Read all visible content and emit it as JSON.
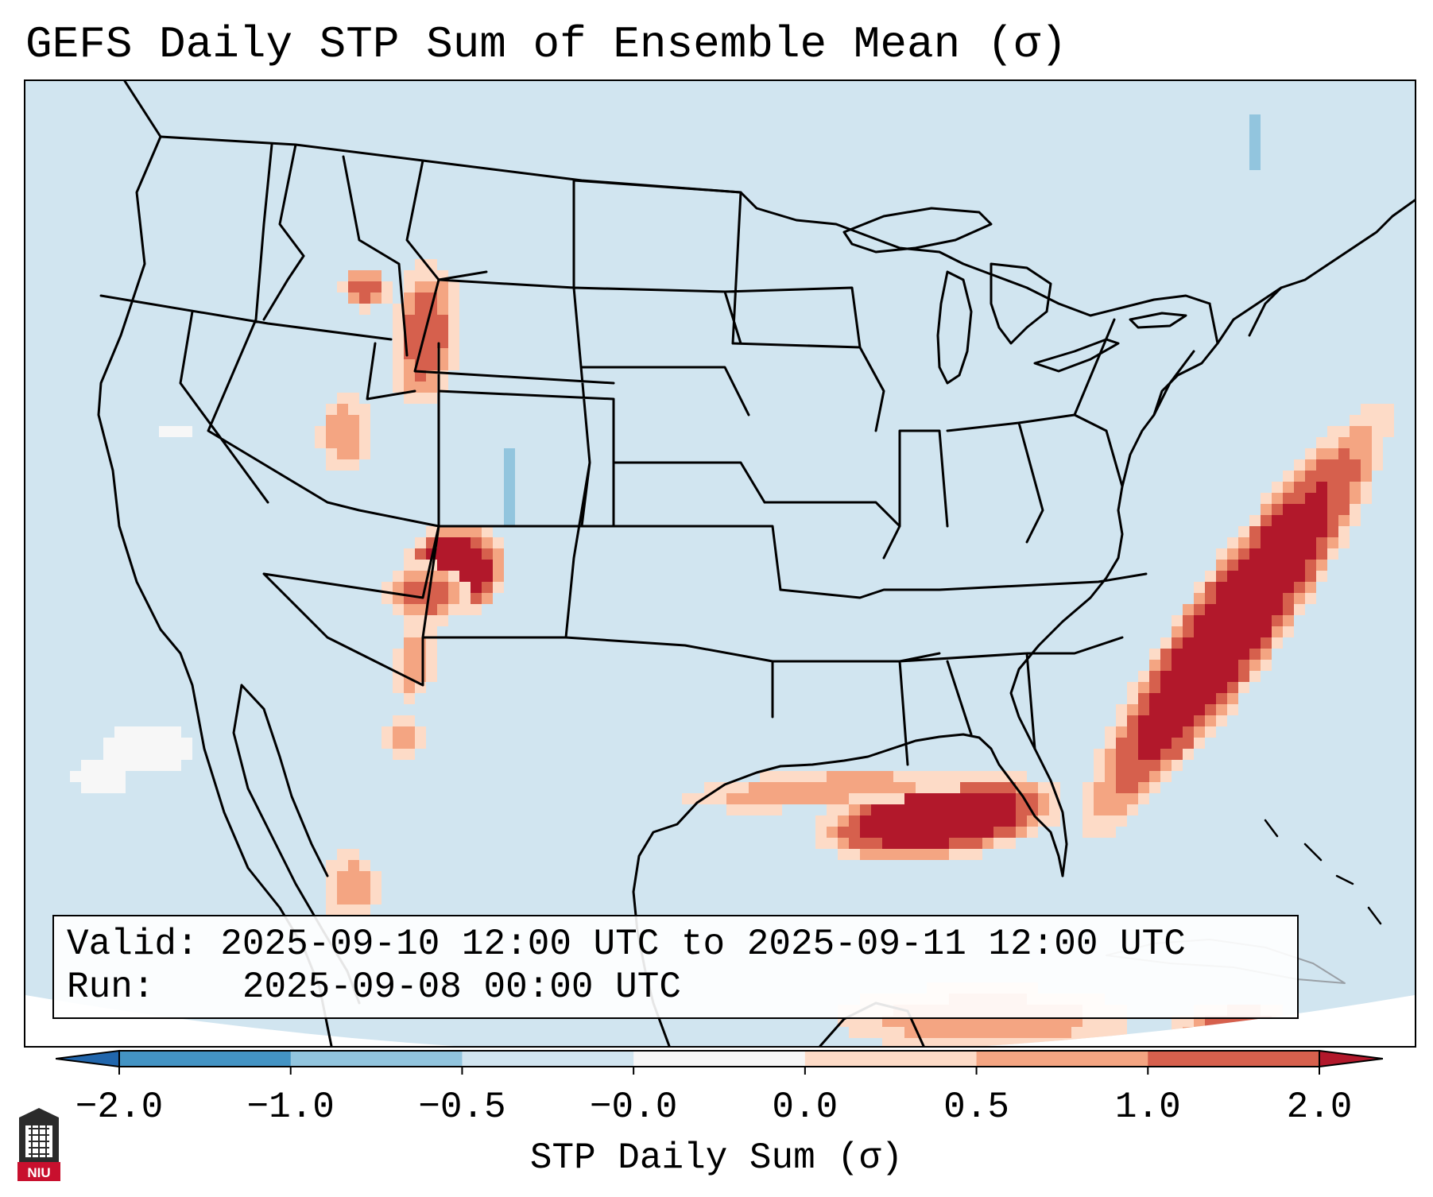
{
  "title": "GEFS Daily STP Sum of Ensemble Mean (σ)",
  "info_box": {
    "valid_label": "Valid:",
    "valid_text": "2025-09-10 12:00 UTC to 2025-09-11 12:00 UTC",
    "run_label": "Run:",
    "run_text": "2025-09-08 00:00 UTC"
  },
  "colorbar": {
    "label": "STP Daily Sum (σ)",
    "ticks": [
      "−2.0",
      "−1.0",
      "−0.5",
      "−0.0",
      "0.0",
      "0.5",
      "1.0",
      "2.0"
    ],
    "bins": [
      {
        "from": "−2.0",
        "to": "−1.0",
        "color": "#4393c3"
      },
      {
        "from": "−1.0",
        "to": "−0.5",
        "color": "#92c5de"
      },
      {
        "from": "−0.5",
        "to": "−0.0",
        "color": "#d1e5f0"
      },
      {
        "from": "−0.0",
        "to": "0.0",
        "color": "#f7f7f7"
      },
      {
        "from": "0.0",
        "to": "0.5",
        "color": "#fddbc7"
      },
      {
        "from": "0.5",
        "to": "1.0",
        "color": "#f4a582"
      },
      {
        "from": "1.0",
        "to": "2.0",
        "color": "#d6604d"
      }
    ],
    "under_color": "#2166ac",
    "over_color": "#b2182b"
  },
  "map": {
    "projection_region": "CONUS",
    "background_color": "#d1e5f0",
    "outside_color": "#ffffff",
    "anomaly_regions": [
      {
        "region": "Southeast US Atlantic coast offshore",
        "category": "> 2.0"
      },
      {
        "region": "Northeastern Gulf of Mexico",
        "category": "> 2.0"
      },
      {
        "region": "Western Colorado / eastern Utah",
        "category": "> 2.0"
      },
      {
        "region": "Western Wyoming / eastern Idaho",
        "category": "1.0 to 2.0"
      },
      {
        "region": "Northern Gulf coast Texas to Florida",
        "category": "0.0 to 0.5"
      },
      {
        "region": "Northern Colorado Front Range",
        "category": "−1.0 to −0.5"
      },
      {
        "region": "Pacific off Baja California",
        "category": "−0.0 to 0.0"
      }
    ]
  },
  "logo": {
    "text": "NIU"
  }
}
